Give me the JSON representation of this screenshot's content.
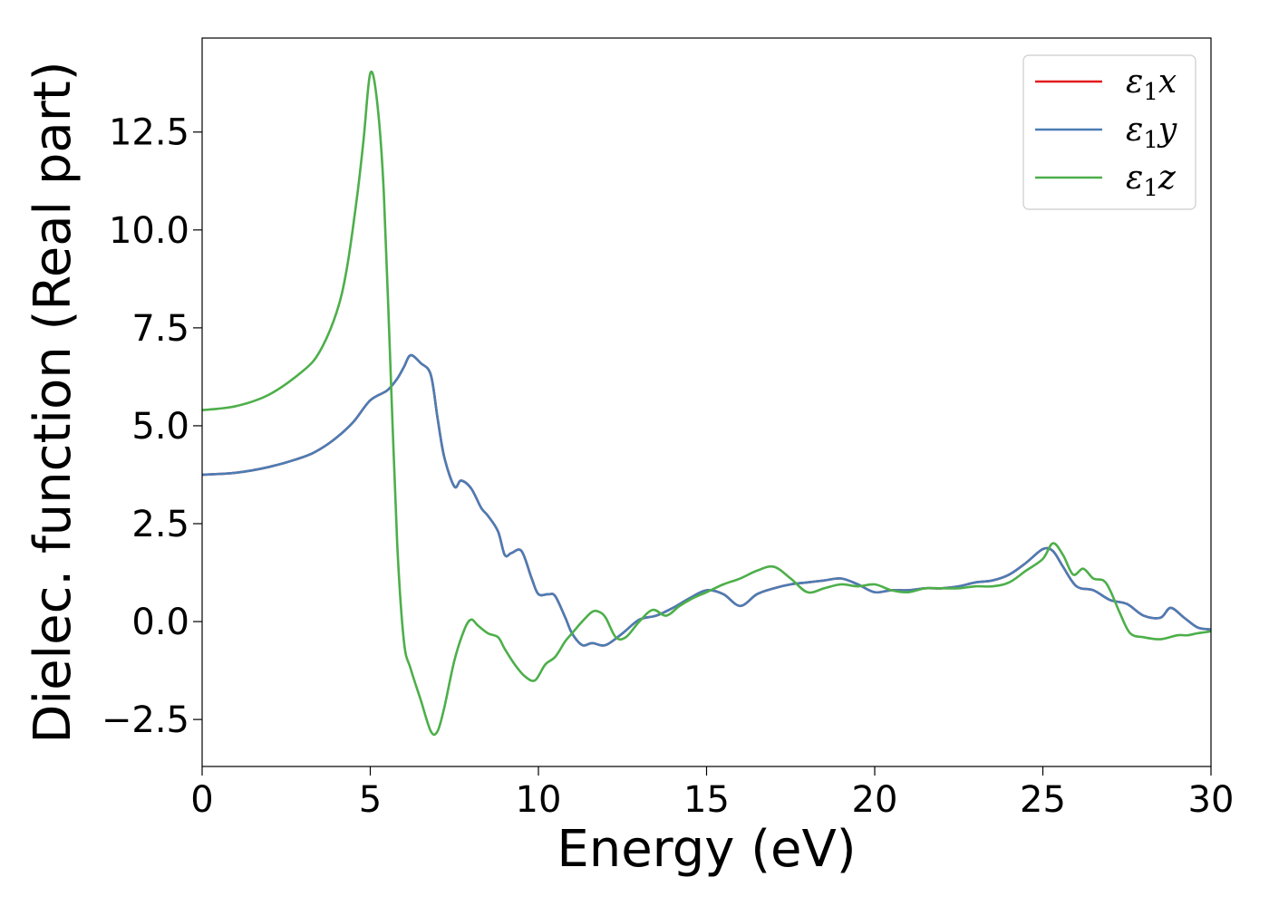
{
  "chart_data": {
    "type": "line",
    "title": "",
    "xlabel": "Energy (eV)",
    "ylabel": "Dielec. function (Real part)",
    "xlim": [
      0,
      30
    ],
    "ylim": [
      -3.7,
      14.9
    ],
    "xticks": [
      0,
      5,
      10,
      15,
      20,
      25,
      30
    ],
    "xtick_labels": [
      "0",
      "5",
      "10",
      "15",
      "20",
      "25",
      "30"
    ],
    "yticks": [
      -2.5,
      0.0,
      2.5,
      5.0,
      7.5,
      10.0,
      12.5
    ],
    "ytick_labels": [
      "−2.5",
      "0.0",
      "2.5",
      "5.0",
      "7.5",
      "10.0",
      "12.5"
    ],
    "grid": false,
    "legend_position": "top-right",
    "series": [
      {
        "name": "ε₁x",
        "legend_base": "ε",
        "legend_sub": "1",
        "legend_tail": "x",
        "color": "#e41a1c",
        "x": [
          0,
          1,
          2,
          3,
          3.5,
          4,
          4.5,
          5,
          5.5,
          5.8,
          6.0,
          6.2,
          6.5,
          6.8,
          7.0,
          7.2,
          7.5,
          7.7,
          8.0,
          8.3,
          8.5,
          8.8,
          9.0,
          9.2,
          9.5,
          9.8,
          10.0,
          10.3,
          10.5,
          10.8,
          11.0,
          11.3,
          11.6,
          12.0,
          12.5,
          13.0,
          13.5,
          14.0,
          14.5,
          15.0,
          15.5,
          16.0,
          16.5,
          17.0,
          17.5,
          18.0,
          18.5,
          19.0,
          19.5,
          20.0,
          20.5,
          21.0,
          21.5,
          22.0,
          22.5,
          23.0,
          23.5,
          24.0,
          24.5,
          25.0,
          25.3,
          25.6,
          26.0,
          26.5,
          27.0,
          27.5,
          28.0,
          28.5,
          28.8,
          29.2,
          29.6,
          30.0
        ],
        "y": [
          3.75,
          3.8,
          3.95,
          4.2,
          4.4,
          4.7,
          5.1,
          5.65,
          5.9,
          6.2,
          6.5,
          6.8,
          6.6,
          6.3,
          5.2,
          4.2,
          3.45,
          3.6,
          3.4,
          2.9,
          2.7,
          2.3,
          1.7,
          1.75,
          1.8,
          1.1,
          0.7,
          0.7,
          0.65,
          0.1,
          -0.3,
          -0.6,
          -0.55,
          -0.6,
          -0.3,
          0.05,
          0.15,
          0.35,
          0.6,
          0.8,
          0.7,
          0.4,
          0.7,
          0.85,
          0.95,
          1.0,
          1.05,
          1.1,
          0.95,
          0.75,
          0.8,
          0.8,
          0.85,
          0.85,
          0.9,
          1.0,
          1.05,
          1.2,
          1.5,
          1.85,
          1.8,
          1.4,
          0.9,
          0.8,
          0.55,
          0.45,
          0.15,
          0.1,
          0.35,
          0.1,
          -0.15,
          -0.2
        ]
      },
      {
        "name": "ε₁y",
        "legend_base": "ε",
        "legend_sub": "1",
        "legend_tail": "y",
        "color": "#4a7db5",
        "x": [
          0,
          1,
          2,
          3,
          3.5,
          4,
          4.5,
          5,
          5.5,
          5.8,
          6.0,
          6.2,
          6.5,
          6.8,
          7.0,
          7.2,
          7.5,
          7.7,
          8.0,
          8.3,
          8.5,
          8.8,
          9.0,
          9.2,
          9.5,
          9.8,
          10.0,
          10.3,
          10.5,
          10.8,
          11.0,
          11.3,
          11.6,
          12.0,
          12.5,
          13.0,
          13.5,
          14.0,
          14.5,
          15.0,
          15.5,
          16.0,
          16.5,
          17.0,
          17.5,
          18.0,
          18.5,
          19.0,
          19.5,
          20.0,
          20.5,
          21.0,
          21.5,
          22.0,
          22.5,
          23.0,
          23.5,
          24.0,
          24.5,
          25.0,
          25.3,
          25.6,
          26.0,
          26.5,
          27.0,
          27.5,
          28.0,
          28.5,
          28.8,
          29.2,
          29.6,
          30.0
        ],
        "y": [
          3.75,
          3.8,
          3.95,
          4.2,
          4.4,
          4.7,
          5.1,
          5.65,
          5.9,
          6.2,
          6.5,
          6.8,
          6.6,
          6.3,
          5.2,
          4.2,
          3.45,
          3.6,
          3.4,
          2.9,
          2.7,
          2.3,
          1.7,
          1.75,
          1.8,
          1.1,
          0.7,
          0.7,
          0.65,
          0.1,
          -0.3,
          -0.6,
          -0.55,
          -0.6,
          -0.3,
          0.05,
          0.15,
          0.35,
          0.6,
          0.8,
          0.7,
          0.4,
          0.7,
          0.85,
          0.95,
          1.0,
          1.05,
          1.1,
          0.95,
          0.75,
          0.8,
          0.8,
          0.85,
          0.85,
          0.9,
          1.0,
          1.05,
          1.2,
          1.5,
          1.85,
          1.8,
          1.4,
          0.9,
          0.8,
          0.55,
          0.45,
          0.15,
          0.1,
          0.35,
          0.1,
          -0.15,
          -0.2
        ]
      },
      {
        "name": "ε₁z",
        "legend_base": "ε",
        "legend_sub": "1",
        "legend_tail": "z",
        "color": "#4daf4a",
        "x": [
          0,
          1,
          2,
          3,
          3.5,
          4,
          4.3,
          4.6,
          4.8,
          5.0,
          5.2,
          5.4,
          5.6,
          5.8,
          6.0,
          6.2,
          6.5,
          6.8,
          7.0,
          7.2,
          7.5,
          7.8,
          8.0,
          8.2,
          8.5,
          8.8,
          9.0,
          9.3,
          9.6,
          9.9,
          10.2,
          10.5,
          10.8,
          11.0,
          11.3,
          11.6,
          11.8,
          12.0,
          12.3,
          12.6,
          13.0,
          13.4,
          13.8,
          14.2,
          14.6,
          15.0,
          15.5,
          16.0,
          16.5,
          17.0,
          17.5,
          18.0,
          18.5,
          19.0,
          19.5,
          20.0,
          20.5,
          21.0,
          21.5,
          22.0,
          22.5,
          23.0,
          23.5,
          24.0,
          24.5,
          25.0,
          25.3,
          25.6,
          25.9,
          26.2,
          26.5,
          26.8,
          27.0,
          27.3,
          27.6,
          28.0,
          28.5,
          29.0,
          29.3,
          29.6,
          30.0
        ],
        "y": [
          5.4,
          5.5,
          5.8,
          6.4,
          6.9,
          7.9,
          9.0,
          10.8,
          12.3,
          14.0,
          13.3,
          11.0,
          6.5,
          2.0,
          -0.5,
          -1.2,
          -2.0,
          -2.8,
          -2.8,
          -2.2,
          -1.0,
          -0.2,
          0.05,
          -0.1,
          -0.3,
          -0.4,
          -0.7,
          -1.1,
          -1.4,
          -1.5,
          -1.1,
          -0.9,
          -0.5,
          -0.3,
          0.0,
          0.25,
          0.25,
          0.1,
          -0.4,
          -0.4,
          0.0,
          0.3,
          0.15,
          0.4,
          0.6,
          0.75,
          0.95,
          1.1,
          1.3,
          1.4,
          1.1,
          0.75,
          0.85,
          0.95,
          0.9,
          0.95,
          0.8,
          0.75,
          0.85,
          0.85,
          0.85,
          0.9,
          0.9,
          1.0,
          1.3,
          1.6,
          2.0,
          1.7,
          1.2,
          1.35,
          1.1,
          1.05,
          0.8,
          0.2,
          -0.3,
          -0.4,
          -0.45,
          -0.35,
          -0.35,
          -0.3,
          -0.25
        ]
      }
    ]
  }
}
